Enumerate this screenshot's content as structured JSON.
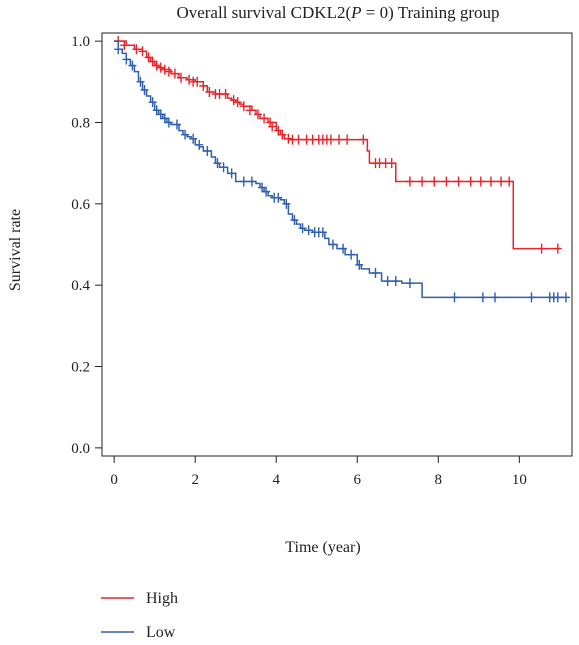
{
  "chart_data": {
    "type": "line",
    "title_prefix": "Overall survival CDKL2(",
    "title_p": "P",
    "title_suffix": " = 0) Training group",
    "xlabel": "Time (year)",
    "ylabel": "Survival rate",
    "xlim": [
      -0.3,
      11.3
    ],
    "ylim": [
      -0.02,
      1.02
    ],
    "xticks": [
      0,
      2,
      4,
      6,
      8,
      10
    ],
    "yticks": [
      0.0,
      0.2,
      0.4,
      0.6,
      0.8,
      1.0
    ],
    "xtick_labels": [
      "0",
      "2",
      "4",
      "6",
      "8",
      "10"
    ],
    "ytick_labels": [
      "0.0",
      "0.2",
      "0.4",
      "0.6",
      "0.8",
      "1.0"
    ],
    "grid": false,
    "legend_position": "bottom-left",
    "series": [
      {
        "name": "High",
        "color": "#e8242a",
        "steps": [
          [
            0,
            1.0
          ],
          [
            0.3,
            0.99
          ],
          [
            0.5,
            0.98
          ],
          [
            0.7,
            0.975
          ],
          [
            0.8,
            0.96
          ],
          [
            0.9,
            0.95
          ],
          [
            1.0,
            0.94
          ],
          [
            1.1,
            0.935
          ],
          [
            1.2,
            0.93
          ],
          [
            1.4,
            0.92
          ],
          [
            1.6,
            0.91
          ],
          [
            1.8,
            0.905
          ],
          [
            2.0,
            0.9
          ],
          [
            2.2,
            0.89
          ],
          [
            2.3,
            0.875
          ],
          [
            2.5,
            0.87
          ],
          [
            2.8,
            0.86
          ],
          [
            2.9,
            0.855
          ],
          [
            3.0,
            0.85
          ],
          [
            3.1,
            0.845
          ],
          [
            3.2,
            0.84
          ],
          [
            3.4,
            0.83
          ],
          [
            3.5,
            0.82
          ],
          [
            3.6,
            0.81
          ],
          [
            3.8,
            0.8
          ],
          [
            4.0,
            0.78
          ],
          [
            4.1,
            0.77
          ],
          [
            4.2,
            0.76
          ],
          [
            4.3,
            0.758
          ],
          [
            6.25,
            0.73
          ],
          [
            6.3,
            0.7
          ],
          [
            6.95,
            0.655
          ],
          [
            9.85,
            0.49
          ],
          [
            10.95,
            0.49
          ]
        ],
        "censors": [
          [
            0.1,
            1.0
          ],
          [
            0.25,
            0.99
          ],
          [
            0.55,
            0.98
          ],
          [
            0.7,
            0.975
          ],
          [
            0.85,
            0.96
          ],
          [
            0.95,
            0.95
          ],
          [
            1.05,
            0.94
          ],
          [
            1.15,
            0.935
          ],
          [
            1.25,
            0.93
          ],
          [
            1.35,
            0.925
          ],
          [
            1.5,
            0.92
          ],
          [
            1.65,
            0.91
          ],
          [
            1.85,
            0.905
          ],
          [
            1.95,
            0.9
          ],
          [
            2.05,
            0.9
          ],
          [
            2.2,
            0.89
          ],
          [
            2.35,
            0.875
          ],
          [
            2.5,
            0.87
          ],
          [
            2.6,
            0.87
          ],
          [
            2.75,
            0.87
          ],
          [
            2.95,
            0.855
          ],
          [
            3.05,
            0.85
          ],
          [
            3.2,
            0.84
          ],
          [
            3.35,
            0.83
          ],
          [
            3.55,
            0.82
          ],
          [
            3.7,
            0.81
          ],
          [
            3.85,
            0.8
          ],
          [
            3.9,
            0.79
          ],
          [
            4.05,
            0.78
          ],
          [
            4.15,
            0.77
          ],
          [
            4.3,
            0.76
          ],
          [
            4.4,
            0.758
          ],
          [
            4.55,
            0.758
          ],
          [
            4.75,
            0.758
          ],
          [
            4.9,
            0.758
          ],
          [
            5.05,
            0.758
          ],
          [
            5.15,
            0.758
          ],
          [
            5.25,
            0.758
          ],
          [
            5.35,
            0.758
          ],
          [
            5.55,
            0.758
          ],
          [
            5.75,
            0.758
          ],
          [
            6.15,
            0.758
          ],
          [
            6.45,
            0.7
          ],
          [
            6.55,
            0.7
          ],
          [
            6.7,
            0.7
          ],
          [
            6.85,
            0.7
          ],
          [
            7.3,
            0.655
          ],
          [
            7.6,
            0.655
          ],
          [
            7.9,
            0.655
          ],
          [
            8.2,
            0.655
          ],
          [
            8.5,
            0.655
          ],
          [
            8.8,
            0.655
          ],
          [
            9.05,
            0.655
          ],
          [
            9.3,
            0.655
          ],
          [
            9.55,
            0.655
          ],
          [
            9.75,
            0.655
          ],
          [
            10.55,
            0.49
          ],
          [
            10.95,
            0.49
          ]
        ]
      },
      {
        "name": "Low",
        "color": "#2f5fae",
        "steps": [
          [
            0,
            1.0
          ],
          [
            0.1,
            0.98
          ],
          [
            0.2,
            0.97
          ],
          [
            0.3,
            0.955
          ],
          [
            0.4,
            0.94
          ],
          [
            0.5,
            0.925
          ],
          [
            0.6,
            0.9
          ],
          [
            0.7,
            0.88
          ],
          [
            0.8,
            0.865
          ],
          [
            0.9,
            0.85
          ],
          [
            1.0,
            0.83
          ],
          [
            1.1,
            0.82
          ],
          [
            1.2,
            0.81
          ],
          [
            1.3,
            0.8
          ],
          [
            1.4,
            0.795
          ],
          [
            1.6,
            0.78
          ],
          [
            1.7,
            0.77
          ],
          [
            1.8,
            0.765
          ],
          [
            1.9,
            0.76
          ],
          [
            2.0,
            0.745
          ],
          [
            2.1,
            0.74
          ],
          [
            2.2,
            0.73
          ],
          [
            2.4,
            0.715
          ],
          [
            2.5,
            0.7
          ],
          [
            2.6,
            0.69
          ],
          [
            2.8,
            0.675
          ],
          [
            3.0,
            0.655
          ],
          [
            3.5,
            0.65
          ],
          [
            3.6,
            0.64
          ],
          [
            3.7,
            0.63
          ],
          [
            3.8,
            0.62
          ],
          [
            3.9,
            0.615
          ],
          [
            4.1,
            0.61
          ],
          [
            4.2,
            0.6
          ],
          [
            4.3,
            0.575
          ],
          [
            4.4,
            0.56
          ],
          [
            4.5,
            0.55
          ],
          [
            4.6,
            0.54
          ],
          [
            4.7,
            0.535
          ],
          [
            4.9,
            0.53
          ],
          [
            5.2,
            0.515
          ],
          [
            5.3,
            0.5
          ],
          [
            5.5,
            0.49
          ],
          [
            5.7,
            0.475
          ],
          [
            6.0,
            0.45
          ],
          [
            6.1,
            0.44
          ],
          [
            6.3,
            0.43
          ],
          [
            6.6,
            0.41
          ],
          [
            7.1,
            0.405
          ],
          [
            7.6,
            0.37
          ],
          [
            11.1,
            0.37
          ]
        ],
        "censors": [
          [
            0.1,
            0.98
          ],
          [
            0.3,
            0.955
          ],
          [
            0.45,
            0.94
          ],
          [
            0.65,
            0.9
          ],
          [
            0.75,
            0.88
          ],
          [
            0.95,
            0.85
          ],
          [
            1.05,
            0.83
          ],
          [
            1.15,
            0.82
          ],
          [
            1.25,
            0.81
          ],
          [
            1.35,
            0.8
          ],
          [
            1.55,
            0.795
          ],
          [
            1.75,
            0.77
          ],
          [
            1.95,
            0.76
          ],
          [
            2.1,
            0.745
          ],
          [
            2.3,
            0.73
          ],
          [
            2.55,
            0.7
          ],
          [
            2.7,
            0.69
          ],
          [
            2.9,
            0.675
          ],
          [
            3.2,
            0.655
          ],
          [
            3.4,
            0.655
          ],
          [
            3.65,
            0.64
          ],
          [
            3.75,
            0.63
          ],
          [
            3.95,
            0.615
          ],
          [
            4.05,
            0.615
          ],
          [
            4.25,
            0.6
          ],
          [
            4.45,
            0.56
          ],
          [
            4.65,
            0.54
          ],
          [
            4.8,
            0.535
          ],
          [
            4.95,
            0.53
          ],
          [
            5.05,
            0.53
          ],
          [
            5.15,
            0.53
          ],
          [
            5.4,
            0.5
          ],
          [
            5.65,
            0.49
          ],
          [
            5.85,
            0.475
          ],
          [
            6.05,
            0.45
          ],
          [
            6.45,
            0.43
          ],
          [
            6.75,
            0.41
          ],
          [
            6.95,
            0.41
          ],
          [
            7.3,
            0.405
          ],
          [
            8.4,
            0.37
          ],
          [
            9.1,
            0.37
          ],
          [
            9.4,
            0.37
          ],
          [
            10.3,
            0.37
          ],
          [
            10.75,
            0.37
          ],
          [
            10.85,
            0.37
          ],
          [
            10.95,
            0.37
          ],
          [
            11.15,
            0.37
          ]
        ]
      }
    ]
  }
}
